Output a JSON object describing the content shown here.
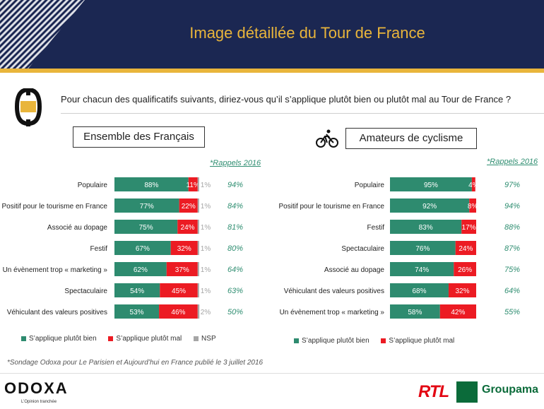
{
  "header": {
    "title": "Image détaillée du Tour de France",
    "bg_color": "#1b2752",
    "title_color": "#e9b53b"
  },
  "question": "Pour chacun des qualificatifs suivants, diriez-vous qu’il s’applique plutôt bien ou plutôt mal au Tour de France ?",
  "colors": {
    "bien": "#2e8b6f",
    "mal": "#ec1b23",
    "nsp": "#a6a6a6",
    "rappel": "#2f8e71"
  },
  "footnote": "*Sondage Odoxa pour Le Parisien et Aujourd’hui en France publié le 3 juillet 2016",
  "brand": {
    "odoxa": "ODOXA",
    "odoxa_tagline": "L’Opinion tranchée",
    "rtl": "RTL",
    "groupama": "Groupama"
  },
  "chart_data": [
    {
      "type": "bar",
      "stacked": true,
      "title": "Ensemble des Français",
      "rappel_header": "*Rappels 2016",
      "categories": [
        "Populaire",
        "Positif pour le tourisme en France",
        "Associé au dopage",
        "Festif",
        "Un évènement trop « marketing »",
        "Spectaculaire",
        "Véhiculant des valeurs positives"
      ],
      "series": [
        {
          "name": "S’applique plutôt bien",
          "values": [
            88,
            77,
            75,
            67,
            62,
            54,
            53
          ],
          "color": "#2e8b6f"
        },
        {
          "name": "S’applique plutôt mal",
          "values": [
            11,
            22,
            24,
            32,
            37,
            45,
            46
          ],
          "color": "#ec1b23"
        },
        {
          "name": "NSP",
          "values": [
            1,
            1,
            1,
            1,
            1,
            1,
            2
          ],
          "color": "#a6a6a6"
        }
      ],
      "rappels": [
        "94%",
        "84%",
        "81%",
        "80%",
        "64%",
        "63%",
        "50%"
      ],
      "xlim": [
        0,
        100
      ],
      "legend_position": "bottom"
    },
    {
      "type": "bar",
      "stacked": true,
      "title": "Amateurs de cyclisme",
      "rappel_header": "*Rappels 2016",
      "categories": [
        "Populaire",
        "Positif pour le tourisme en France",
        "Festif",
        "Spectaculaire",
        "Associé au dopage",
        "Véhiculant des valeurs positives",
        "Un évènement trop « marketing »"
      ],
      "series": [
        {
          "name": "S’applique plutôt bien",
          "values": [
            95,
            92,
            83,
            76,
            74,
            68,
            58
          ],
          "color": "#2e8b6f"
        },
        {
          "name": "S’applique plutôt mal",
          "values": [
            4,
            8,
            17,
            24,
            26,
            32,
            42
          ],
          "color": "#ec1b23"
        }
      ],
      "rappels": [
        "97%",
        "94%",
        "88%",
        "87%",
        "75%",
        "64%",
        "55%"
      ],
      "xlim": [
        0,
        100
      ],
      "legend_position": "bottom"
    }
  ]
}
